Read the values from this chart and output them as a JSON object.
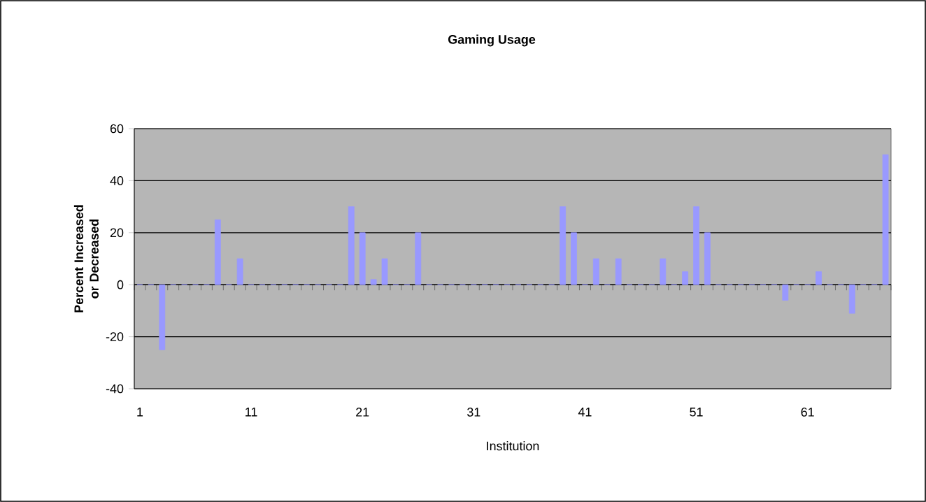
{
  "chart_data": {
    "type": "bar",
    "title": "Gaming Usage",
    "xlabel": "Institution",
    "ylabel": "Percent Increased or Decreased",
    "categories": [
      "1",
      null,
      null,
      null,
      null,
      null,
      null,
      null,
      null,
      null,
      "11",
      null,
      null,
      null,
      null,
      null,
      null,
      null,
      null,
      null,
      "21",
      null,
      null,
      null,
      null,
      null,
      null,
      null,
      null,
      null,
      "31",
      null,
      null,
      null,
      null,
      null,
      null,
      null,
      null,
      null,
      "41",
      null,
      null,
      null,
      null,
      null,
      null,
      null,
      null,
      null,
      "51",
      null,
      null,
      null,
      null,
      null,
      null,
      null,
      null,
      null,
      "61",
      null,
      null,
      null,
      null,
      null,
      null,
      null
    ],
    "values": [
      0,
      0,
      -25,
      0,
      0,
      0,
      0,
      25,
      0,
      10,
      0,
      0,
      0,
      0,
      0,
      0,
      0,
      0,
      0,
      30,
      20,
      2,
      10,
      0,
      0,
      20,
      0,
      0,
      0,
      0,
      0,
      0,
      0,
      0,
      0,
      0,
      0,
      0,
      30,
      20,
      0,
      10,
      0,
      10,
      0,
      0,
      0,
      10,
      0,
      5,
      30,
      20,
      0,
      0,
      0,
      0,
      0,
      0,
      -6,
      0,
      0,
      5,
      0,
      0,
      -11,
      0,
      0,
      50
    ],
    "color": "#9999ff",
    "ylim": [
      -40,
      60
    ],
    "yticks": [
      -40,
      -20,
      0,
      20,
      40,
      60
    ],
    "grid": "y"
  }
}
